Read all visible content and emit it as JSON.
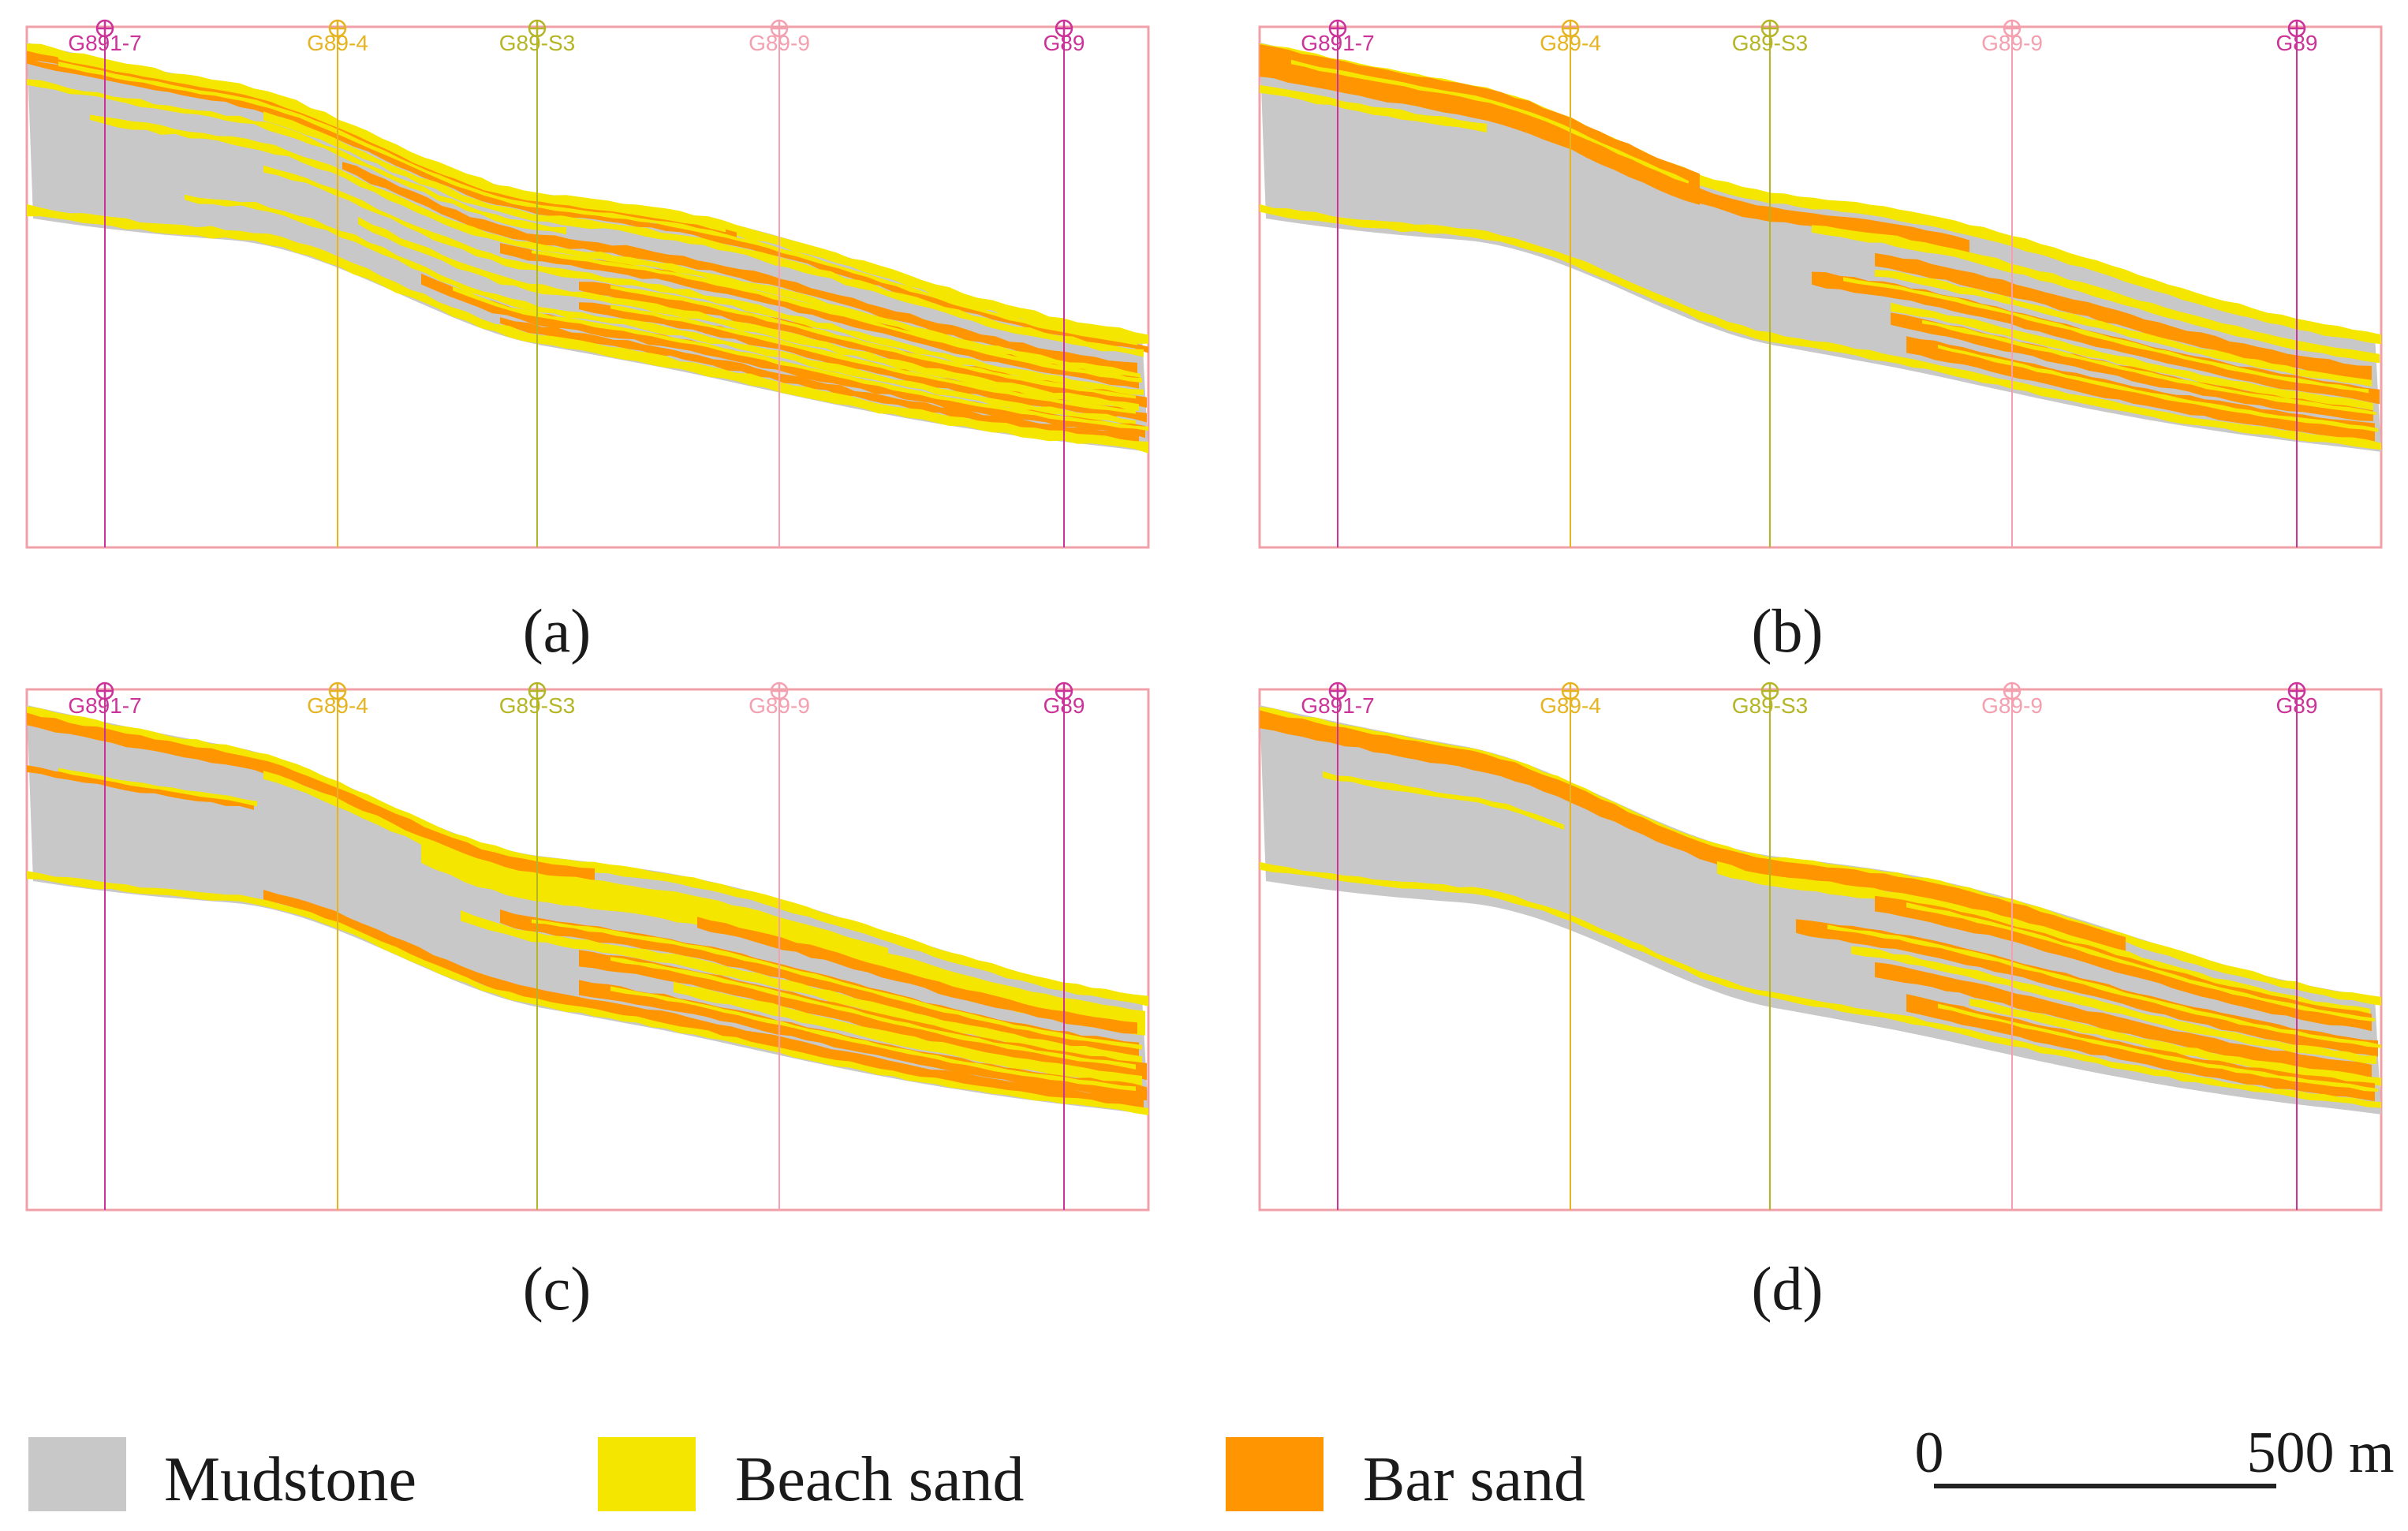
{
  "figure": {
    "panels": [
      {
        "id": "a",
        "caption": "(a)"
      },
      {
        "id": "b",
        "caption": "(b)"
      },
      {
        "id": "c",
        "caption": "(c)"
      },
      {
        "id": "d",
        "caption": "(d)"
      }
    ],
    "wells": [
      {
        "name": "G891-7",
        "color": "#cc3399"
      },
      {
        "name": "G89-4",
        "color": "#e6b422"
      },
      {
        "name": "G89-S3",
        "color": "#b5b526"
      },
      {
        "name": "G89-9",
        "color": "#f4a0b0"
      },
      {
        "name": "G89",
        "color": "#cc3399"
      }
    ],
    "legend": [
      {
        "label": "Mudstone",
        "color": "#c8c8c8"
      },
      {
        "label": "Beach sand",
        "color": "#f5e600"
      },
      {
        "label": "Bar sand",
        "color": "#ff9500"
      }
    ],
    "scale_bar": {
      "start_label": "0",
      "end_label": "500 m"
    },
    "frame_color": "#f0a0a8"
  }
}
